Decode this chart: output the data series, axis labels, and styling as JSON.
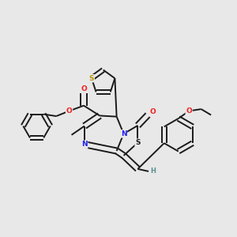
{
  "bg_color": "#e8e8e8",
  "bond_color": "#1a1a1a",
  "bond_width": 1.4,
  "atom_colors": {
    "N": "#2020ee",
    "O": "#ee2020",
    "S_thio": "#b8960a",
    "S_thiaz": "#1a1a1a",
    "H": "#5a9090",
    "C": "#1a1a1a"
  },
  "figsize": [
    3.0,
    3.0
  ],
  "dpi": 100
}
